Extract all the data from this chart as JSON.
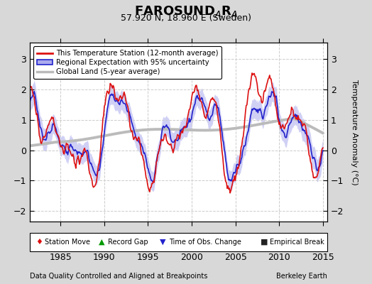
{
  "title_main": "FAROSUND",
  "title_sub_A1": "A",
  "title_R": "R",
  "title_sub_A2": "A",
  "subtitle": "57.920 N, 18.960 E (Sweden)",
  "xlabel_left": "Data Quality Controlled and Aligned at Breakpoints",
  "xlabel_right": "Berkeley Earth",
  "ylabel": "Temperature Anomaly (°C)",
  "xlim": [
    1981.5,
    2015.5
  ],
  "ylim": [
    -2.35,
    3.55
  ],
  "yticks": [
    -2,
    -1,
    0,
    1,
    2,
    3
  ],
  "xticks": [
    1985,
    1990,
    1995,
    2000,
    2005,
    2010,
    2015
  ],
  "bg_color": "#d8d8d8",
  "plot_bg_color": "#ffffff",
  "legend_entries": [
    "This Temperature Station (12-month average)",
    "Regional Expectation with 95% uncertainty",
    "Global Land (5-year average)"
  ],
  "red_color": "#dd1111",
  "blue_color": "#2222cc",
  "blue_fill": "#aaaaee",
  "gray_color": "#bbbbbb",
  "grid_color": "#cccccc"
}
